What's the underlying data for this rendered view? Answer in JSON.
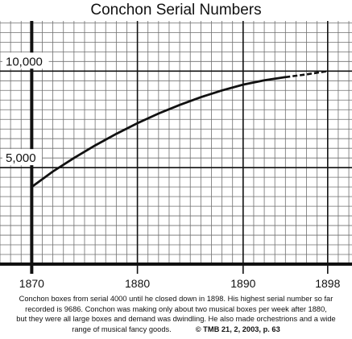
{
  "chart_data": {
    "type": "line",
    "title": "Conchon Serial Numbers",
    "xlabel": "",
    "ylabel": "",
    "xlim": [
      1867,
      1900.3
    ],
    "ylim": [
      0,
      12600
    ],
    "x_ticks": [
      1870,
      1880,
      1890,
      1898
    ],
    "x_tick_labels": [
      "1870",
      "1880",
      "1890",
      "1898"
    ],
    "y_ticks": [
      5000,
      10000
    ],
    "y_tick_labels": [
      "5,000",
      "10,000"
    ],
    "grid": true,
    "series": [
      {
        "solid": [
          [
            1870,
            4000
          ],
          [
            1872,
            4800
          ],
          [
            1874,
            5500
          ],
          [
            1876,
            6150
          ],
          [
            1878,
            6750
          ],
          [
            1880,
            7300
          ],
          [
            1882,
            7800
          ],
          [
            1884,
            8250
          ],
          [
            1886,
            8650
          ],
          [
            1888,
            9000
          ],
          [
            1890,
            9300
          ],
          [
            1892,
            9520
          ],
          [
            1894,
            9686
          ]
        ],
        "dashed": [
          [
            1894,
            9686
          ],
          [
            1896,
            9830
          ],
          [
            1898,
            10000
          ]
        ]
      }
    ]
  },
  "caption": {
    "lines": [
      "Conchon boxes from serial 4000 until he closed down in 1898.  His highest serial number so far",
      "recorded is 9686. Conchon was making only about two musical boxes per week after 1880,",
      "but they were all large boxes and demand was dwindling.  He also made orchestrions and a wide",
      "range of musical fancy goods."
    ],
    "credit": "© TMB 21, 2, 2003, p. 63"
  },
  "colors": {
    "grid": "#6f6f6f",
    "axis": "#111111",
    "line": "#111111"
  }
}
